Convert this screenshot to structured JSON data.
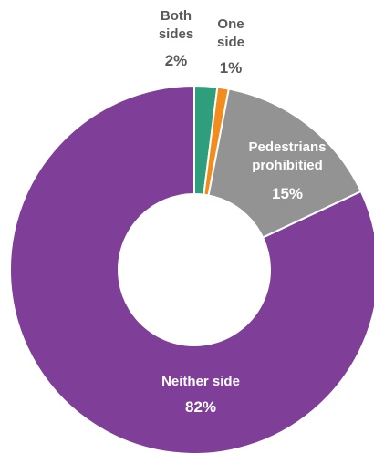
{
  "chart_data": {
    "type": "pie",
    "donut": true,
    "slices": [
      {
        "name_lines": [
          "Both",
          "sides"
        ],
        "value": 2,
        "display": "2%",
        "color": "#2e9e7c",
        "label_color": "#58595b"
      },
      {
        "name_lines": [
          "One",
          "side"
        ],
        "value": 1,
        "display": "1%",
        "color": "#f28c1c",
        "label_color": "#58595b"
      },
      {
        "name_lines": [
          "Pedestrians",
          "prohibitied"
        ],
        "value": 15,
        "display": "15%",
        "color": "#939393",
        "label_color": "#ffffff"
      },
      {
        "name_lines": [
          "Neither side"
        ],
        "value": 82,
        "display": "82%",
        "color": "#7f3f98",
        "label_color": "#ffffff"
      }
    ],
    "legend": "none",
    "background": "#ffffff"
  }
}
